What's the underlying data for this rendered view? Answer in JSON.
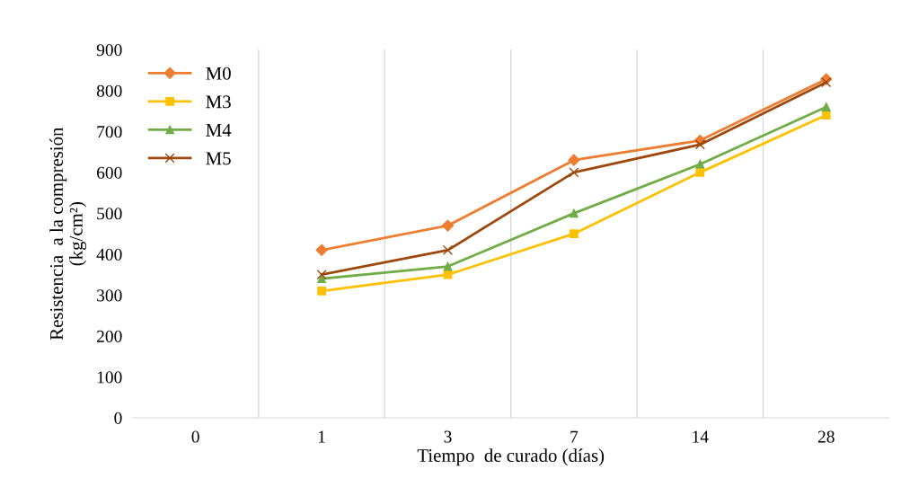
{
  "chart_data": {
    "type": "line",
    "xlabel": "Tiempo  de curado (días)",
    "ylabel": "Resistencia  a la compresión\n(kg/cm²)",
    "categories": [
      "0",
      "1",
      "3",
      "7",
      "14",
      "28"
    ],
    "series": [
      {
        "name": "M0",
        "color": "#ed7d31",
        "marker": "diamond",
        "values": [
          null,
          410,
          470,
          630,
          678,
          828
        ]
      },
      {
        "name": "M3",
        "color": "#ffc000",
        "marker": "square",
        "values": [
          null,
          310,
          350,
          450,
          600,
          740
        ]
      },
      {
        "name": "M4",
        "color": "#70ad47",
        "marker": "triangle",
        "values": [
          null,
          340,
          370,
          500,
          620,
          760
        ]
      },
      {
        "name": "M5",
        "color": "#9e480e",
        "marker": "cross",
        "values": [
          null,
          350,
          410,
          600,
          668,
          820
        ]
      }
    ],
    "ylim": [
      0,
      900
    ],
    "yticks": [
      0,
      100,
      200,
      300,
      400,
      500,
      600,
      700,
      800,
      900
    ],
    "grid": "x",
    "legend": "top left"
  }
}
